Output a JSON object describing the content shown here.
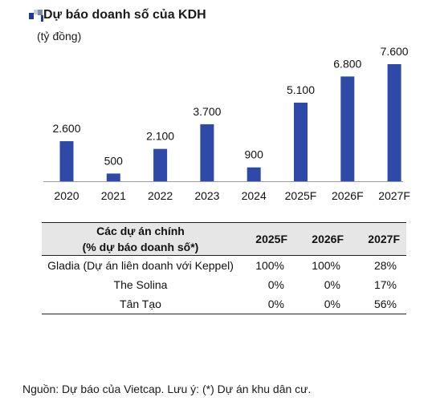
{
  "header": {
    "title": "Dự báo doanh số của KDH",
    "logo_colors": [
      "#1f3a93",
      "#7f8fa6",
      "#c9cfd9"
    ]
  },
  "unit_label": "(tỷ đồng)",
  "chart_data": {
    "type": "bar",
    "categories": [
      "2020",
      "2021",
      "2022",
      "2023",
      "2024",
      "2025F",
      "2026F",
      "2027F"
    ],
    "values": [
      2600,
      500,
      2100,
      3700,
      900,
      5100,
      6800,
      7600
    ],
    "value_labels": [
      "2.600",
      "500",
      "2.100",
      "3.700",
      "900",
      "5.100",
      "6.800",
      "7.600"
    ],
    "bar_color": "#2e49a8",
    "axis_color": "#999999",
    "title": "Dự báo doanh số của KDH",
    "ylabel": "(tỷ đồng)",
    "ylim": [
      0,
      7600
    ],
    "grid": false
  },
  "table": {
    "headers": {
      "project_line1": "Các dự án chính",
      "project_line2": "(% dự báo doanh số*)",
      "col1": "2025F",
      "col2": "2026F",
      "col3": "2027F"
    },
    "rows": [
      {
        "name": "Gladia (Dự án liên doanh với Keppel)",
        "c1": "100%",
        "c2": "100%",
        "c3": "28%"
      },
      {
        "name": "The Solina",
        "c1": "0%",
        "c2": "0%",
        "c3": "17%"
      },
      {
        "name": "Tân Tạo",
        "c1": "0%",
        "c2": "0%",
        "c3": "56%"
      }
    ]
  },
  "source": "Nguồn: Dự báo của Vietcap. Lưu ý: (*) Dự án khu dân cư."
}
